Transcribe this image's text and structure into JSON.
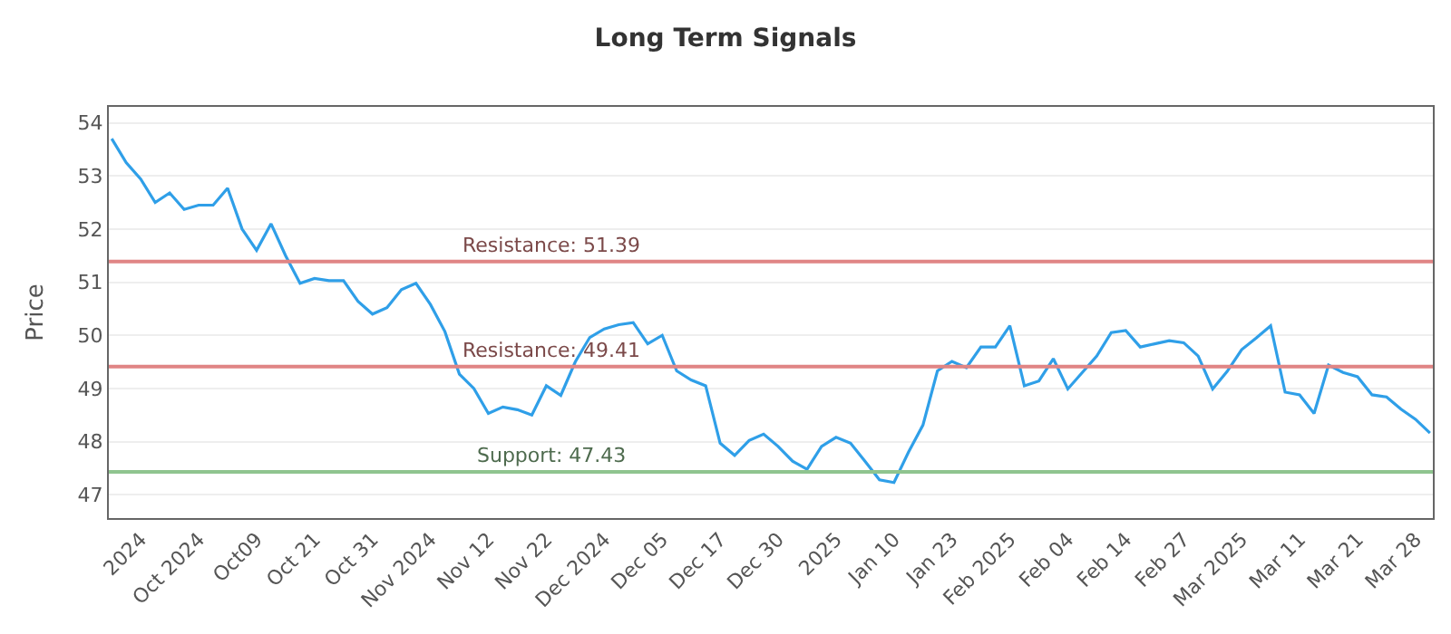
{
  "chart_data": {
    "type": "line",
    "title": "Long Term Signals",
    "ylabel": "Price",
    "categories": [
      null,
      null,
      "2024",
      null,
      null,
      null,
      "Oct 2024",
      null,
      null,
      null,
      "Oct09",
      null,
      null,
      null,
      "Oct 21",
      null,
      null,
      null,
      "Oct 31",
      null,
      null,
      null,
      "Nov 2024",
      null,
      null,
      null,
      "Nov 12",
      null,
      null,
      null,
      "Nov 22",
      null,
      null,
      null,
      "Dec 2024",
      null,
      null,
      null,
      "Dec 05",
      null,
      null,
      null,
      "Dec 17",
      null,
      null,
      null,
      "Dec 30",
      null,
      null,
      null,
      "2025",
      null,
      null,
      null,
      "Jan 10",
      null,
      null,
      null,
      "Jan 23",
      null,
      null,
      null,
      "Feb 2025",
      null,
      null,
      null,
      "Feb 04",
      null,
      null,
      null,
      "Feb 14",
      null,
      null,
      null,
      "Feb 27",
      null,
      null,
      null,
      "Mar 2025",
      null,
      null,
      null,
      "Mar 11",
      null,
      null,
      null,
      "Mar 21",
      null,
      null,
      null,
      "Mar 28",
      null
    ],
    "series": [
      {
        "color": "#2f9fe8",
        "values": [
          53.7,
          53.25,
          52.94,
          52.5,
          52.68,
          52.37,
          52.45,
          52.45,
          52.77,
          52.0,
          51.6,
          52.1,
          51.5,
          50.98,
          51.07,
          51.03,
          51.03,
          50.64,
          50.4,
          50.52,
          50.86,
          50.98,
          50.58,
          50.07,
          49.27,
          49.0,
          48.53,
          48.65,
          48.6,
          48.5,
          49.05,
          48.87,
          49.5,
          49.96,
          50.12,
          50.2,
          50.24,
          49.84,
          50.0,
          49.33,
          49.16,
          49.05,
          47.97,
          47.74,
          48.02,
          48.14,
          47.91,
          47.63,
          47.48,
          47.91,
          48.08,
          47.97,
          47.63,
          47.28,
          47.23,
          47.8,
          48.31,
          49.33,
          49.51,
          49.39,
          49.78,
          49.78,
          50.18,
          49.05,
          49.14,
          49.56,
          48.99,
          49.3,
          49.61,
          50.05,
          50.09,
          49.78,
          49.84,
          49.9,
          49.86,
          49.61,
          48.99,
          49.32,
          49.73,
          49.95,
          50.18,
          48.93,
          48.88,
          48.53,
          49.44,
          49.3,
          49.22,
          48.88,
          48.84,
          48.61,
          48.42,
          48.16
        ]
      }
    ],
    "ylim": [
      46.56,
      54.3
    ],
    "yticks": [
      47,
      48,
      49,
      50,
      51,
      52,
      53,
      54
    ],
    "grid": "y",
    "marker": "none",
    "line_style": "solid",
    "ref_lines": [
      {
        "axis": "y",
        "value": 51.39,
        "label": "Resistance: 51.39",
        "color": "#e08585"
      },
      {
        "axis": "y",
        "value": 49.41,
        "label": "Resistance: 49.41",
        "color": "#e08585"
      },
      {
        "axis": "y",
        "value": 47.43,
        "label": "Support: 47.43",
        "color": "#8fc48f"
      }
    ]
  }
}
